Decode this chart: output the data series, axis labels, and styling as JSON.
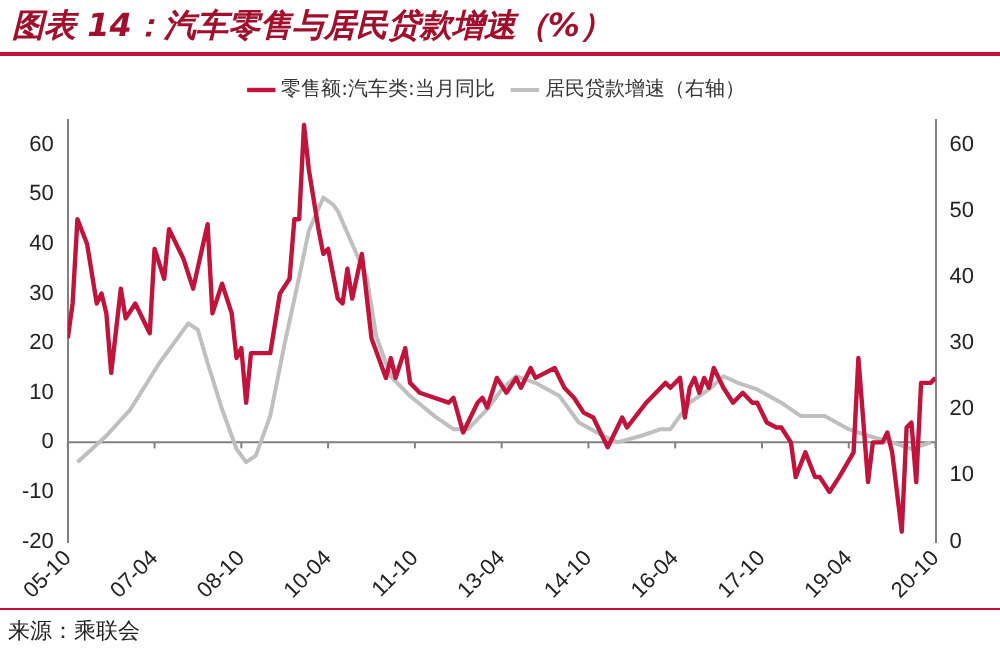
{
  "chart_data": {
    "type": "line",
    "title": "图表 14：汽车零售与居民贷款增速（%）",
    "annotations": [
      "来源：乘联会"
    ],
    "xlim": [
      "2005-10",
      "2020-10"
    ],
    "xticks": [
      {
        "value": "2005-10",
        "label": "05-10"
      },
      {
        "value": "2007-04",
        "label": "07-04"
      },
      {
        "value": "2008-10",
        "label": "08-10"
      },
      {
        "value": "2010-04",
        "label": "10-04"
      },
      {
        "value": "2011-10",
        "label": "11-10"
      },
      {
        "value": "2013-04",
        "label": "13-04"
      },
      {
        "value": "2014-10",
        "label": "14-10"
      },
      {
        "value": "2016-04",
        "label": "16-04"
      },
      {
        "value": "2017-10",
        "label": "17-10"
      },
      {
        "value": "2019-04",
        "label": "19-04"
      },
      {
        "value": "2020-10",
        "label": "20-10"
      }
    ],
    "ylim": [
      -20,
      65
    ],
    "yticks": [
      -20,
      -10,
      0,
      10,
      20,
      30,
      40,
      50,
      60
    ],
    "y2lim": [
      0,
      63.75
    ],
    "y2ticks": [
      0,
      10,
      20,
      30,
      40,
      50,
      60
    ],
    "ref_lines": [
      {
        "axis": "y",
        "value": 0,
        "color": "#808080"
      }
    ],
    "grid": false,
    "legend": "top",
    "marker": "none",
    "line_style": "solid",
    "series": [
      {
        "name": "零售额:汽车类:当月同比",
        "color": "#c0143c",
        "x": [
          "2005-10",
          "2005-11",
          "2005-12",
          "2006-02",
          "2006-04",
          "2006-05",
          "2006-06",
          "2006-07",
          "2006-09",
          "2006-10",
          "2006-12",
          "2007-03",
          "2007-04",
          "2007-06",
          "2007-07",
          "2007-10",
          "2007-12",
          "2008-03",
          "2008-04",
          "2008-06",
          "2008-08",
          "2008-09",
          "2008-10",
          "2008-11",
          "2008-12",
          "2009-02",
          "2009-04",
          "2009-06",
          "2009-08",
          "2009-09",
          "2009-10",
          "2009-11",
          "2009-12",
          "2010-02",
          "2010-03",
          "2010-04",
          "2010-06",
          "2010-07",
          "2010-08",
          "2010-09",
          "2010-11",
          "2011-01",
          "2011-04",
          "2011-05",
          "2011-06",
          "2011-08",
          "2011-09",
          "2011-11",
          "2012-05",
          "2012-06",
          "2012-08",
          "2012-11",
          "2012-12",
          "2013-01",
          "2013-03",
          "2013-05",
          "2013-07",
          "2013-08",
          "2013-10",
          "2013-11",
          "2014-03",
          "2014-05",
          "2014-07",
          "2014-09",
          "2014-11",
          "2015-02",
          "2015-04",
          "2015-05",
          "2015-06",
          "2015-10",
          "2015-12",
          "2016-02",
          "2016-03",
          "2016-05",
          "2016-06",
          "2016-07",
          "2016-08",
          "2016-09",
          "2016-10",
          "2016-11",
          "2016-12",
          "2017-01",
          "2017-02",
          "2017-04",
          "2017-06",
          "2017-08",
          "2017-09",
          "2017-11",
          "2018-01",
          "2018-02",
          "2018-04",
          "2018-05",
          "2018-07",
          "2018-09",
          "2018-10",
          "2018-12",
          "2019-02",
          "2019-05",
          "2019-06",
          "2019-08",
          "2019-09",
          "2019-11",
          "2019-12",
          "2020-01",
          "2020-03",
          "2020-04",
          "2020-05",
          "2020-06",
          "2020-07",
          "2020-09",
          "2020-10"
        ],
        "values": [
          21,
          28,
          45,
          40,
          28,
          30,
          26,
          14,
          31,
          25,
          28,
          22,
          39,
          33,
          43,
          37,
          31,
          44,
          26,
          32,
          26,
          17,
          19,
          8,
          18,
          18,
          18,
          30,
          33,
          45,
          45,
          64,
          55,
          43,
          38,
          39,
          29,
          28,
          35,
          29,
          38,
          21,
          13,
          17,
          13,
          19,
          12,
          10,
          8,
          9,
          2,
          8,
          9,
          7,
          13,
          10,
          13,
          11,
          15,
          13,
          15,
          11,
          9,
          6,
          5,
          -1,
          3,
          5,
          3,
          8,
          10,
          12,
          11,
          13,
          5,
          11,
          13,
          10,
          13,
          11,
          15,
          13,
          11,
          8,
          10,
          8,
          8,
          4,
          3,
          3,
          0,
          -7,
          -2,
          -7,
          -7,
          -10,
          -7,
          -2,
          17,
          -8,
          0,
          0,
          2,
          -2,
          -18,
          3,
          4,
          -8,
          12,
          12,
          13
        ]
      },
      {
        "name": "居民贷款增速（右轴）",
        "color": "#bfbfbf",
        "axis": "y2",
        "x": [
          "2005-12",
          "2006-03",
          "2006-06",
          "2006-11",
          "2007-05",
          "2007-08",
          "2007-11",
          "2008-01",
          "2008-03",
          "2008-06",
          "2008-09",
          "2008-11",
          "2009-01",
          "2009-04",
          "2009-07",
          "2009-10",
          "2009-12",
          "2010-03",
          "2010-05",
          "2010-06",
          "2010-09",
          "2010-12",
          "2011-02",
          "2011-05",
          "2011-09",
          "2012-02",
          "2012-06",
          "2012-09",
          "2013-01",
          "2013-04",
          "2013-07",
          "2013-11",
          "2014-04",
          "2014-08",
          "2015-01",
          "2015-04",
          "2015-09",
          "2016-01",
          "2016-03",
          "2016-07",
          "2016-11",
          "2017-02",
          "2017-05",
          "2017-09",
          "2018-02",
          "2018-06",
          "2018-11",
          "2019-04",
          "2019-08",
          "2020-01",
          "2020-05",
          "2020-09"
        ],
        "values": [
          12,
          14,
          16,
          20,
          27,
          30,
          33,
          32,
          27,
          20,
          14,
          12,
          13,
          19,
          30,
          40,
          47,
          52,
          51,
          50,
          45,
          40,
          31,
          25,
          22,
          19,
          17,
          17,
          20,
          23,
          25,
          24,
          22,
          18,
          16,
          15,
          16,
          17,
          17,
          21,
          23,
          25,
          24,
          23,
          21,
          19,
          19,
          17,
          16,
          15,
          14,
          15
        ]
      }
    ]
  }
}
